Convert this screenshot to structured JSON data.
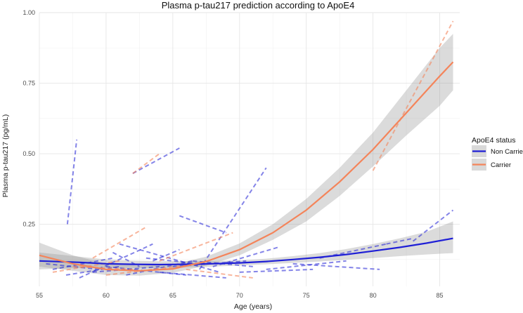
{
  "chart_data": {
    "type": "line",
    "title": "Plasma p-tau217 prediction according to ApoE4",
    "xlabel": "Age (years)",
    "ylabel": "Plasma p-tau217 (pg/mL)",
    "xlim": [
      55,
      86.5
    ],
    "ylim": [
      0.03,
      1.0
    ],
    "x_ticks": [
      55,
      60,
      65,
      70,
      75,
      80,
      85
    ],
    "x_tick_labels": [
      "55",
      "60",
      "65",
      "70",
      "75",
      "80",
      "85"
    ],
    "y_ticks": [
      0.25,
      0.5,
      0.75,
      1.0
    ],
    "y_tick_labels": [
      "0.25",
      "0.50",
      "0.75",
      "1.00"
    ],
    "grid": true,
    "legend": {
      "title": "ApoE4 status",
      "position": "right",
      "entries": [
        {
          "name": "Non Carrier",
          "color": "#1f1fd6"
        },
        {
          "name": "Carrier",
          "color": "#f4845a"
        }
      ]
    },
    "series": [
      {
        "name": "Non Carrier",
        "color": "#1f1fd6",
        "x": [
          55,
          58,
          60,
          62,
          64,
          66,
          68,
          70,
          72,
          74,
          76,
          78,
          80,
          82,
          84,
          86
        ],
        "y": [
          0.12,
          0.115,
          0.11,
          0.108,
          0.107,
          0.108,
          0.11,
          0.113,
          0.118,
          0.125,
          0.133,
          0.143,
          0.155,
          0.168,
          0.183,
          0.2
        ],
        "lower": [
          0.09,
          0.095,
          0.095,
          0.095,
          0.095,
          0.097,
          0.1,
          0.104,
          0.108,
          0.113,
          0.118,
          0.124,
          0.13,
          0.137,
          0.143,
          0.148
        ],
        "upper": [
          0.15,
          0.135,
          0.125,
          0.121,
          0.119,
          0.119,
          0.12,
          0.122,
          0.128,
          0.137,
          0.148,
          0.162,
          0.18,
          0.2,
          0.223,
          0.26
        ]
      },
      {
        "name": "Carrier",
        "color": "#f4845a",
        "x": [
          55,
          57.5,
          60,
          62.5,
          65,
          67.5,
          70,
          72.5,
          75,
          77.5,
          80,
          82.5,
          85,
          86
        ],
        "y": [
          0.14,
          0.11,
          0.09,
          0.085,
          0.092,
          0.118,
          0.16,
          0.22,
          0.3,
          0.4,
          0.515,
          0.645,
          0.775,
          0.825
        ],
        "lower": [
          0.1,
          0.085,
          0.07,
          0.068,
          0.078,
          0.103,
          0.14,
          0.195,
          0.26,
          0.35,
          0.455,
          0.565,
          0.67,
          0.725
        ],
        "upper": [
          0.185,
          0.14,
          0.11,
          0.103,
          0.108,
          0.135,
          0.182,
          0.25,
          0.34,
          0.45,
          0.575,
          0.725,
          0.875,
          0.925
        ]
      }
    ],
    "individual_trajectories": [
      {
        "group": "Non Carrier",
        "x": [
          57.1,
          57.8
        ],
        "y": [
          0.25,
          0.55
        ]
      },
      {
        "group": "Non Carrier",
        "x": [
          62.0,
          65.5
        ],
        "y": [
          0.43,
          0.52
        ]
      },
      {
        "group": "Non Carrier",
        "x": [
          65.5,
          69.0
        ],
        "y": [
          0.28,
          0.22
        ]
      },
      {
        "group": "Non Carrier",
        "x": [
          67.0,
          72.0
        ],
        "y": [
          0.09,
          0.45
        ]
      },
      {
        "group": "Non Carrier",
        "x": [
          56.0,
          60.5
        ],
        "y": [
          0.09,
          0.13
        ]
      },
      {
        "group": "Non Carrier",
        "x": [
          58.0,
          63.5
        ],
        "y": [
          0.06,
          0.18
        ]
      },
      {
        "group": "Non Carrier",
        "x": [
          60.0,
          66.0
        ],
        "y": [
          0.1,
          0.07
        ]
      },
      {
        "group": "Non Carrier",
        "x": [
          61.0,
          68.5
        ],
        "y": [
          0.18,
          0.08
        ]
      },
      {
        "group": "Non Carrier",
        "x": [
          63.0,
          67.0
        ],
        "y": [
          0.13,
          0.11
        ]
      },
      {
        "group": "Non Carrier",
        "x": [
          65.0,
          70.5
        ],
        "y": [
          0.1,
          0.12
        ]
      },
      {
        "group": "Non Carrier",
        "x": [
          68.0,
          73.0
        ],
        "y": [
          0.1,
          0.17
        ]
      },
      {
        "group": "Non Carrier",
        "x": [
          70.0,
          75.5
        ],
        "y": [
          0.08,
          0.09
        ]
      },
      {
        "group": "Non Carrier",
        "x": [
          72.0,
          78.0
        ],
        "y": [
          0.09,
          0.12
        ]
      },
      {
        "group": "Non Carrier",
        "x": [
          74.0,
          80.5
        ],
        "y": [
          0.11,
          0.09
        ]
      },
      {
        "group": "Non Carrier",
        "x": [
          76.0,
          81.0
        ],
        "y": [
          0.13,
          0.18
        ]
      },
      {
        "group": "Non Carrier",
        "x": [
          81.0,
          83.0
        ],
        "y": [
          0.18,
          0.2
        ]
      },
      {
        "group": "Non Carrier",
        "x": [
          83.0,
          86.0
        ],
        "y": [
          0.19,
          0.3
        ]
      },
      {
        "group": "Non Carrier",
        "x": [
          59.0,
          64.0
        ],
        "y": [
          0.08,
          0.1
        ]
      },
      {
        "group": "Non Carrier",
        "x": [
          61.5,
          66.5
        ],
        "y": [
          0.07,
          0.12
        ]
      },
      {
        "group": "Non Carrier",
        "x": [
          64.0,
          69.0
        ],
        "y": [
          0.08,
          0.06
        ]
      },
      {
        "group": "Non Carrier",
        "x": [
          66.5,
          71.0
        ],
        "y": [
          0.12,
          0.1
        ]
      },
      {
        "group": "Non Carrier",
        "x": [
          55.5,
          59.5
        ],
        "y": [
          0.11,
          0.09
        ]
      },
      {
        "group": "Non Carrier",
        "x": [
          57.0,
          61.0
        ],
        "y": [
          0.07,
          0.1
        ]
      },
      {
        "group": "Non Carrier",
        "x": [
          60.5,
          62.5
        ],
        "y": [
          0.15,
          0.1
        ]
      },
      {
        "group": "Non Carrier",
        "x": [
          63.5,
          65.5
        ],
        "y": [
          0.12,
          0.16
        ]
      },
      {
        "group": "Carrier",
        "x": [
          56.0,
          61.0
        ],
        "y": [
          0.08,
          0.12
        ]
      },
      {
        "group": "Carrier",
        "x": [
          59.0,
          63.0
        ],
        "y": [
          0.13,
          0.24
        ]
      },
      {
        "group": "Carrier",
        "x": [
          62.0,
          64.0
        ],
        "y": [
          0.43,
          0.5
        ]
      },
      {
        "group": "Carrier",
        "x": [
          60.0,
          67.0
        ],
        "y": [
          0.07,
          0.11
        ]
      },
      {
        "group": "Carrier",
        "x": [
          64.0,
          69.5
        ],
        "y": [
          0.12,
          0.22
        ]
      },
      {
        "group": "Carrier",
        "x": [
          66.0,
          71.0
        ],
        "y": [
          0.09,
          0.06
        ]
      },
      {
        "group": "Carrier",
        "x": [
          80.0,
          86.0
        ],
        "y": [
          0.44,
          0.97
        ]
      },
      {
        "group": "Carrier",
        "x": [
          57.5,
          62.0
        ],
        "y": [
          0.1,
          0.09
        ]
      }
    ]
  }
}
